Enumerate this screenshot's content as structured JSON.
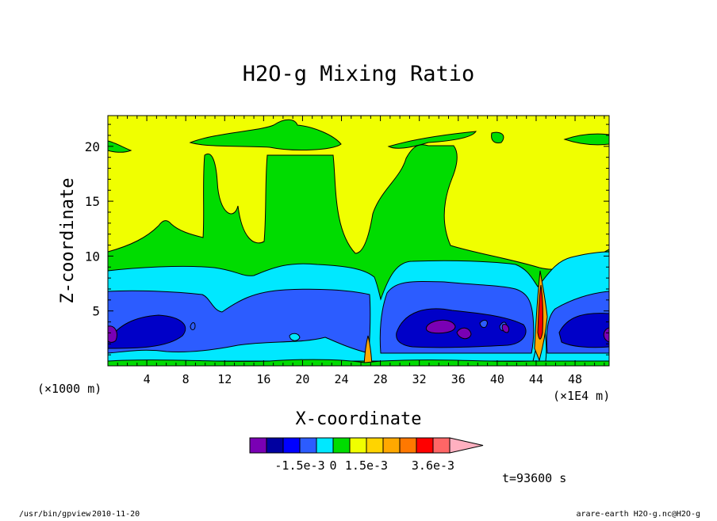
{
  "chart_data": {
    "type": "heatmap",
    "title": "H2O-g Mixing Ratio",
    "xlabel": "X-coordinate",
    "ylabel": "Z-coordinate",
    "x_unit_left": "(×1000 m)",
    "x_unit_right": "(×1E4 m)",
    "xlim": [
      0,
      51.5
    ],
    "ylim": [
      0,
      22.8
    ],
    "x_ticks": [
      4,
      8,
      12,
      16,
      20,
      24,
      28,
      32,
      36,
      40,
      44,
      48
    ],
    "y_ticks": [
      5,
      10,
      15,
      20
    ],
    "time_label": "t=93600 s",
    "colorbar": {
      "colors": [
        "#7a00b4",
        "#0000a0",
        "#0000ff",
        "#2c5cff",
        "#00e8ff",
        "#00dc00",
        "#f0ff00",
        "#ffd400",
        "#ffa800",
        "#ff7800",
        "#ff0000",
        "#ff6666",
        "#ffb0c0"
      ],
      "tick_labels": [
        "-1.5e-3",
        "0",
        "1.5e-3",
        "3.6e-3"
      ],
      "tick_after_box": [
        3,
        5,
        7,
        11
      ]
    },
    "regions": [
      {
        "name": "upper",
        "level": "0",
        "color": "#f0ff00",
        "extent_x": [
          0,
          51.5
        ],
        "extent_z": [
          0,
          22.8
        ]
      },
      {
        "name": "mid-band",
        "level": "positive-low",
        "color": "#00dc00",
        "extent_x": [
          0,
          51.5
        ],
        "extent_z": [
          0,
          10.5
        ]
      },
      {
        "name": "cyan-band",
        "level": "negative-low",
        "color": "#00e8ff",
        "extent_x": [
          0,
          51.5
        ],
        "extent_z": [
          0.5,
          8.8
        ]
      },
      {
        "name": "blue-core-left",
        "level": "negative-mid",
        "color": "#2c5cff",
        "extent_x": [
          0,
          27
        ],
        "extent_z": [
          1.3,
          6.8
        ]
      },
      {
        "name": "blue-core-right",
        "level": "negative-mid",
        "color": "#2c5cff",
        "extent_x": [
          27.5,
          51.5
        ],
        "extent_z": [
          1.2,
          6.8
        ]
      },
      {
        "name": "purple-minimum-1",
        "level": "negative-max",
        "color": "#7a00b4",
        "center": [
          0.3,
          3
        ]
      },
      {
        "name": "purple-minimum-2",
        "level": "negative-max",
        "color": "#7a00b4",
        "center": [
          33.5,
          3.8
        ]
      },
      {
        "name": "purple-minimum-3",
        "level": "negative-max",
        "color": "#7a00b4",
        "center": [
          51,
          3
        ]
      },
      {
        "name": "positive-plume",
        "level": "positive-max",
        "color": "#ff0000",
        "center": [
          43.8,
          5
        ]
      }
    ]
  },
  "footer": {
    "left_path": "/usr/bin/gpview",
    "left_date": "2010-11-20",
    "right": "arare-earth_H2O-g.nc@H2O-g"
  }
}
